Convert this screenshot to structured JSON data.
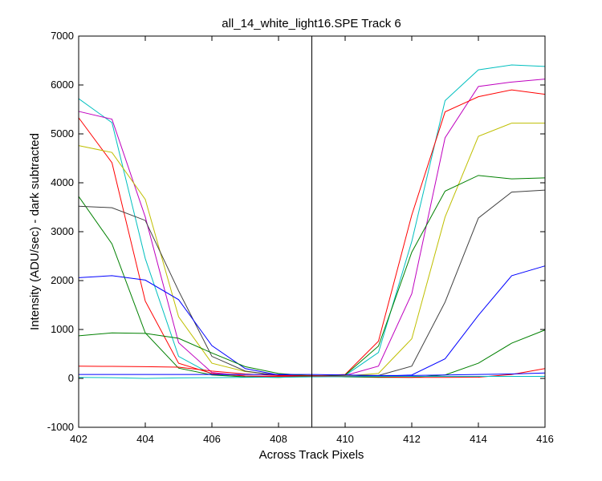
{
  "chart_data": {
    "type": "line",
    "title": "all_14_white_light16.SPE   Track 6",
    "xlabel": "Across Track Pixels",
    "ylabel": "Intensity (ADU/sec) - dark subtracted",
    "xlim": [
      402,
      416
    ],
    "ylim": [
      -1000,
      7000
    ],
    "xticks": [
      402,
      404,
      406,
      408,
      410,
      412,
      414,
      416
    ],
    "yticks": [
      -1000,
      0,
      1000,
      2000,
      3000,
      4000,
      5000,
      6000,
      7000
    ],
    "grid": false,
    "vline_x": 409,
    "x": [
      402,
      403,
      404,
      405,
      406,
      407,
      408,
      409,
      410,
      411,
      412,
      413,
      414,
      415,
      416
    ],
    "series": [
      {
        "color": "#00bfbf",
        "values": [
          5720,
          5230,
          2450,
          450,
          80,
          30,
          20,
          50,
          60,
          530,
          2800,
          5680,
          6310,
          6410,
          6380
        ]
      },
      {
        "color": "#bf00bf",
        "values": [
          5460,
          5300,
          3300,
          730,
          120,
          50,
          30,
          50,
          60,
          250,
          1730,
          4920,
          5970,
          6060,
          6120
        ]
      },
      {
        "color": "#ff0000",
        "values": [
          5330,
          4410,
          1580,
          310,
          100,
          50,
          40,
          50,
          80,
          760,
          3340,
          5450,
          5760,
          5900,
          5810
        ]
      },
      {
        "color": "#bfbf00",
        "values": [
          4760,
          4620,
          3660,
          1260,
          310,
          140,
          70,
          60,
          50,
          100,
          810,
          3300,
          4950,
          5220,
          5220
        ]
      },
      {
        "color": "#008000",
        "values": [
          3720,
          2750,
          930,
          210,
          70,
          30,
          20,
          40,
          70,
          660,
          2580,
          3830,
          4150,
          4080,
          4100
        ]
      },
      {
        "color": "#404040",
        "values": [
          3520,
          3490,
          3230,
          1790,
          450,
          150,
          60,
          60,
          40,
          60,
          250,
          1560,
          3280,
          3810,
          3850
        ]
      },
      {
        "color": "#0000ff",
        "values": [
          2060,
          2100,
          2010,
          1610,
          670,
          200,
          70,
          50,
          40,
          40,
          70,
          400,
          1290,
          2100,
          2300
        ]
      },
      {
        "color": "#008000",
        "values": [
          870,
          930,
          920,
          820,
          520,
          240,
          100,
          50,
          30,
          20,
          20,
          70,
          310,
          720,
          990
        ]
      },
      {
        "color": "#ff0000",
        "values": [
          250,
          245,
          240,
          230,
          150,
          90,
          60,
          50,
          40,
          30,
          20,
          20,
          25,
          80,
          200
        ]
      },
      {
        "color": "#0000ff",
        "values": [
          80,
          80,
          80,
          80,
          80,
          80,
          80,
          80,
          70,
          60,
          60,
          70,
          80,
          90,
          110
        ]
      },
      {
        "color": "#00bfbf",
        "values": [
          20,
          15,
          0,
          10,
          15,
          20,
          25,
          30,
          35,
          40,
          40,
          40,
          40,
          40,
          40
        ]
      }
    ]
  }
}
